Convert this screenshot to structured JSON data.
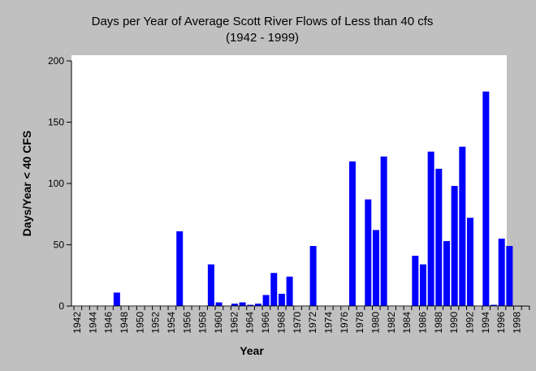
{
  "chart_data": {
    "type": "bar",
    "title": "Days per Year of Average Scott River Flows of Less than 40 cfs",
    "subtitle": "(1942 - 1999)",
    "xlabel": "Year",
    "ylabel": "Days/Year < 40 CFS",
    "ylim": [
      0,
      200
    ],
    "xlim": [
      1942,
      2000
    ],
    "y_ticks": [
      0,
      50,
      100,
      150,
      200
    ],
    "x_tick_labels": [
      "1942",
      "1944",
      "1946",
      "1948",
      "1950",
      "1952",
      "1954",
      "1956",
      "1958",
      "1960",
      "1962",
      "1964",
      "1966",
      "1968",
      "1970",
      "1972",
      "1974",
      "1976",
      "1978",
      "1980",
      "1982",
      "1984",
      "1986",
      "1988",
      "1990",
      "1992",
      "1994",
      "1996",
      "1998"
    ],
    "grid": false,
    "legend": "none",
    "colors": {
      "bar": "#0000ff",
      "background": "#c0c0c0",
      "plot_area": "#ffffff"
    },
    "x": [
      1947,
      1955,
      1959,
      1960,
      1962,
      1963,
      1964,
      1965,
      1966,
      1967,
      1968,
      1969,
      1972,
      1977,
      1979,
      1980,
      1981,
      1985,
      1986,
      1987,
      1988,
      1989,
      1990,
      1991,
      1992,
      1994,
      1995,
      1996,
      1997
    ],
    "values": [
      11,
      61,
      34,
      3,
      2,
      3,
      1,
      2,
      9,
      27,
      10,
      24,
      49,
      118,
      87,
      62,
      122,
      41,
      34,
      126,
      112,
      53,
      98,
      130,
      72,
      175,
      1,
      55,
      49
    ]
  }
}
